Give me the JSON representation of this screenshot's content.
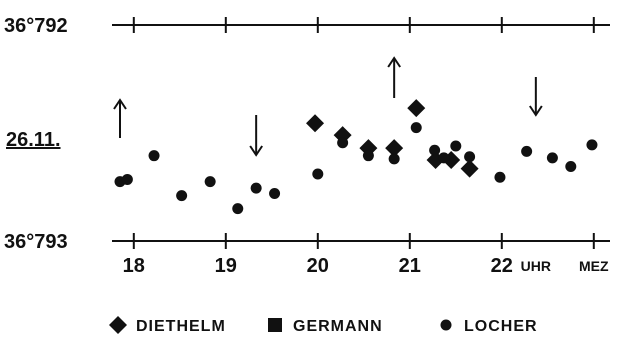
{
  "chart_data": {
    "type": "scatter",
    "date_label": "26.11.",
    "y_top_label": "36°792",
    "y_bottom_label": "36°793",
    "x_ticks": [
      "18",
      "19",
      "20",
      "21",
      "22"
    ],
    "x_unit_labels": [
      "UHR",
      "MEZ"
    ],
    "legend_placement": "bottom",
    "series": [
      {
        "name": "DIETHELM",
        "marker": "diamond",
        "points": [
          {
            "x": 19.97,
            "y": 0.545
          },
          {
            "x": 20.27,
            "y": 0.49
          },
          {
            "x": 20.55,
            "y": 0.43
          },
          {
            "x": 20.83,
            "y": 0.43
          },
          {
            "x": 21.07,
            "y": 0.615
          },
          {
            "x": 21.28,
            "y": 0.375
          },
          {
            "x": 21.45,
            "y": 0.375
          },
          {
            "x": 21.65,
            "y": 0.335
          }
        ]
      },
      {
        "name": "GERMANN",
        "marker": "square",
        "points": []
      },
      {
        "name": "LOCHER",
        "marker": "circle",
        "points": [
          {
            "x": 17.85,
            "y": 0.275
          },
          {
            "x": 17.93,
            "y": 0.285
          },
          {
            "x": 18.22,
            "y": 0.395
          },
          {
            "x": 18.52,
            "y": 0.21
          },
          {
            "x": 18.83,
            "y": 0.275
          },
          {
            "x": 19.13,
            "y": 0.15
          },
          {
            "x": 19.33,
            "y": 0.245
          },
          {
            "x": 19.53,
            "y": 0.22
          },
          {
            "x": 20.0,
            "y": 0.31
          },
          {
            "x": 20.27,
            "y": 0.455
          },
          {
            "x": 20.55,
            "y": 0.395
          },
          {
            "x": 20.83,
            "y": 0.38
          },
          {
            "x": 21.07,
            "y": 0.525
          },
          {
            "x": 21.27,
            "y": 0.42
          },
          {
            "x": 21.37,
            "y": 0.385
          },
          {
            "x": 21.5,
            "y": 0.44
          },
          {
            "x": 21.65,
            "y": 0.39
          },
          {
            "x": 21.98,
            "y": 0.295
          },
          {
            "x": 22.27,
            "y": 0.415
          },
          {
            "x": 22.55,
            "y": 0.385
          },
          {
            "x": 22.75,
            "y": 0.345
          },
          {
            "x": 22.98,
            "y": 0.445
          }
        ]
      }
    ],
    "arrows": [
      {
        "x": 17.85,
        "direction": "up"
      },
      {
        "x": 19.33,
        "direction": "down"
      },
      {
        "x": 20.83,
        "direction": "up"
      },
      {
        "x": 22.37,
        "direction": "down"
      }
    ],
    "xlim": [
      17.85,
      23.3
    ],
    "ylim": [
      0,
      1
    ]
  },
  "colors": {
    "ink": "#111111",
    "background": "#ffffff"
  }
}
